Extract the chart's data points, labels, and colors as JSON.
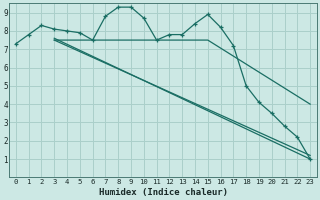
{
  "xlabel": "Humidex (Indice chaleur)",
  "bg_color": "#cce8e4",
  "grid_color": "#aacfca",
  "line_color": "#1a6e64",
  "xlim": [
    -0.5,
    23.5
  ],
  "ylim": [
    0,
    9.5
  ],
  "xticks": [
    0,
    1,
    2,
    3,
    4,
    5,
    6,
    7,
    8,
    9,
    10,
    11,
    12,
    13,
    14,
    15,
    16,
    17,
    18,
    19,
    20,
    21,
    22,
    23
  ],
  "yticks": [
    1,
    2,
    3,
    4,
    5,
    6,
    7,
    8,
    9
  ],
  "line1_x": [
    0,
    1,
    2,
    3,
    4,
    5,
    6,
    7,
    8,
    9,
    10,
    11,
    12,
    13,
    14,
    15,
    16,
    17,
    18,
    19,
    20,
    21,
    22,
    23
  ],
  "line1_y": [
    7.3,
    7.8,
    8.3,
    8.1,
    8.0,
    7.9,
    7.5,
    8.8,
    9.3,
    9.3,
    8.7,
    7.5,
    7.8,
    7.8,
    8.4,
    8.9,
    8.2,
    7.2,
    5.0,
    4.1,
    3.5,
    2.8,
    2.2,
    1.0
  ],
  "line2_x": [
    3,
    23
  ],
  "line2_y": [
    7.6,
    1.0
  ],
  "line3_x": [
    3,
    23
  ],
  "line3_y": [
    7.5,
    1.2
  ],
  "line4_x": [
    3,
    15,
    23
  ],
  "line4_y": [
    7.5,
    7.5,
    4.0
  ]
}
